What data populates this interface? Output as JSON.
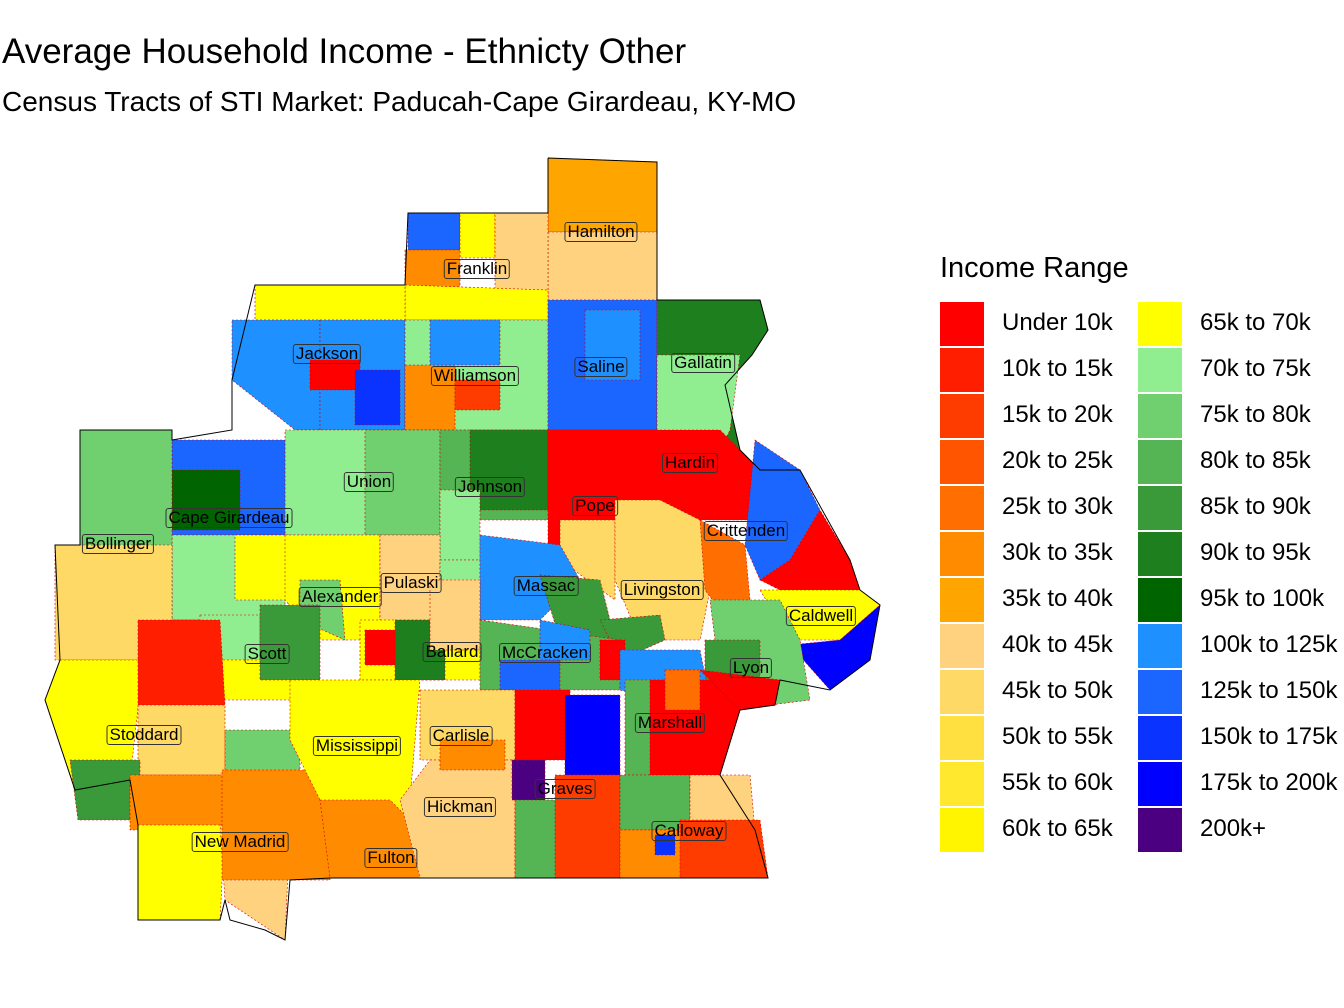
{
  "title": "Average Household Income - Ethnicty Other",
  "subtitle": "Census Tracts of STI Market: Paducah-Cape Girardeau, KY-MO",
  "legend": {
    "title": "Income Range",
    "items": [
      {
        "label": "Under 10k",
        "color": "#FF0000"
      },
      {
        "label": "10k to 15k",
        "color": "#FF1E00"
      },
      {
        "label": "15k to 20k",
        "color": "#FF3C00"
      },
      {
        "label": "20k to 25k",
        "color": "#FF5500"
      },
      {
        "label": "25k to 30k",
        "color": "#FF6E00"
      },
      {
        "label": "30k to 35k",
        "color": "#FF8C00"
      },
      {
        "label": "35k to 40k",
        "color": "#FFA500"
      },
      {
        "label": "40k to 45k",
        "color": "#FFD27F"
      },
      {
        "label": "45k to 50k",
        "color": "#FFD966"
      },
      {
        "label": "50k to 55k",
        "color": "#FFE040"
      },
      {
        "label": "55k to 60k",
        "color": "#FFE82E"
      },
      {
        "label": "60k to 65k",
        "color": "#FFF500"
      },
      {
        "label": "65k to 70k",
        "color": "#FFFF00"
      },
      {
        "label": "70k to 75k",
        "color": "#90EE90"
      },
      {
        "label": "75k to 80k",
        "color": "#70D070"
      },
      {
        "label": "80k to 85k",
        "color": "#55B555"
      },
      {
        "label": "85k to 90k",
        "color": "#3A9A3A"
      },
      {
        "label": "90k to 95k",
        "color": "#1E7F1E"
      },
      {
        "label": "95k to 100k",
        "color": "#006400"
      },
      {
        "label": "100k to 125k",
        "color": "#1E90FF"
      },
      {
        "label": "125k to 150k",
        "color": "#1A66FF"
      },
      {
        "label": "150k to 175k",
        "color": "#0A33FF"
      },
      {
        "label": "175k to 200k",
        "color": "#0000FF"
      },
      {
        "label": "200k+",
        "color": "#4B0082"
      }
    ]
  },
  "counties": [
    {
      "name": "Hamilton"
    },
    {
      "name": "Franklin"
    },
    {
      "name": "Jackson"
    },
    {
      "name": "Williamson"
    },
    {
      "name": "Saline"
    },
    {
      "name": "Gallatin"
    },
    {
      "name": "Union"
    },
    {
      "name": "Johnson"
    },
    {
      "name": "Hardin"
    },
    {
      "name": "Pope"
    },
    {
      "name": "Cape Girardeau"
    },
    {
      "name": "Crittenden"
    },
    {
      "name": "Bollinger"
    },
    {
      "name": "Pulaski"
    },
    {
      "name": "Massac"
    },
    {
      "name": "Livingston"
    },
    {
      "name": "Alexander"
    },
    {
      "name": "Caldwell"
    },
    {
      "name": "Scott"
    },
    {
      "name": "Ballard"
    },
    {
      "name": "McCracken"
    },
    {
      "name": "Lyon"
    },
    {
      "name": "Marshall"
    },
    {
      "name": "Stoddard"
    },
    {
      "name": "Carlisle"
    },
    {
      "name": "Mississippi"
    },
    {
      "name": "Graves"
    },
    {
      "name": "Hickman"
    },
    {
      "name": "Calloway"
    },
    {
      "name": "New Madrid"
    },
    {
      "name": "Fulton"
    }
  ]
}
